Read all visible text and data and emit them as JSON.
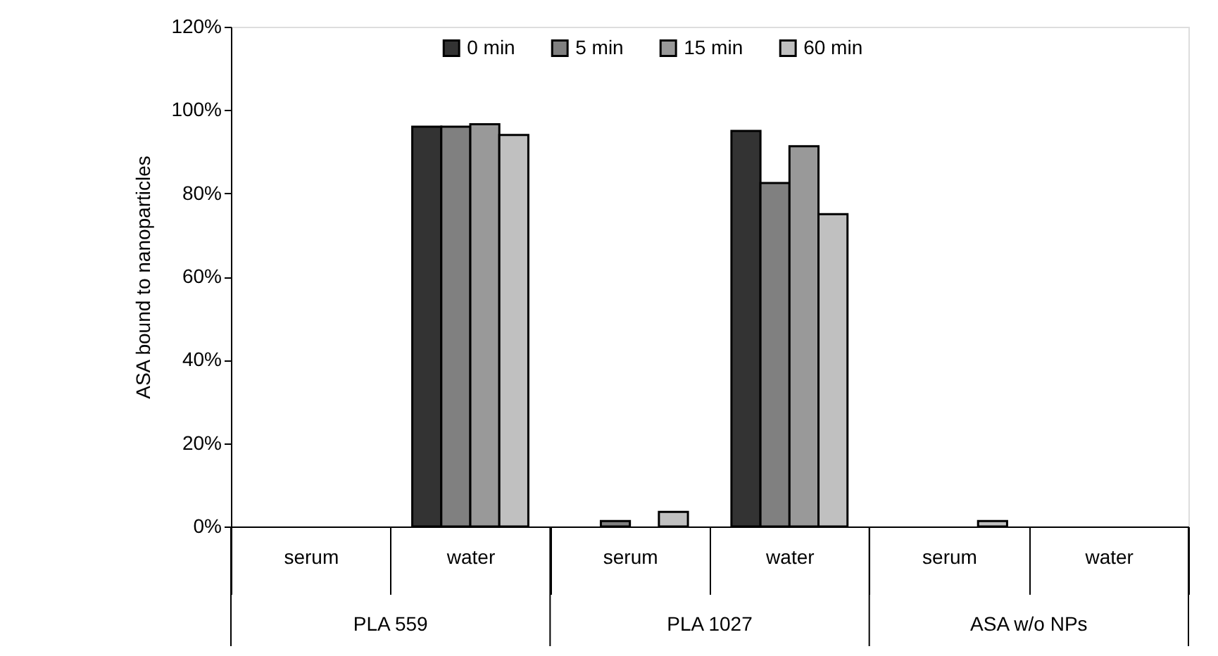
{
  "chart_data": {
    "type": "bar",
    "ylabel": "ASA bound to nanoparticles",
    "categories": [
      "serum",
      "water",
      "serum",
      "water",
      "serum",
      "water"
    ],
    "annotations": [
      "PLA 559",
      "PLA 1027",
      "ASA w/o NPs"
    ],
    "series": [
      {
        "name": "0 min",
        "color": "#333333",
        "values": [
          null,
          96,
          null,
          95,
          null,
          null
        ]
      },
      {
        "name": "5 min",
        "color": "#808080",
        "values": [
          null,
          96,
          1.3,
          82.5,
          null,
          null
        ]
      },
      {
        "name": "15 min",
        "color": "#999999",
        "values": [
          null,
          96.6,
          null,
          91.3,
          null,
          null
        ]
      },
      {
        "name": "60 min",
        "color": "#c0c0c0",
        "values": [
          null,
          94,
          3.5,
          75,
          1.3,
          null
        ]
      }
    ],
    "ylim": [
      0,
      120
    ],
    "yticks": [
      {
        "value": 0,
        "label": "0%"
      },
      {
        "value": 20,
        "label": "20%"
      },
      {
        "value": 40,
        "label": "40%"
      },
      {
        "value": 60,
        "label": "60%"
      },
      {
        "value": 80,
        "label": "80%"
      },
      {
        "value": 100,
        "label": "100%"
      },
      {
        "value": 120,
        "label": "120%"
      }
    ],
    "grid": false,
    "legend": "top"
  }
}
